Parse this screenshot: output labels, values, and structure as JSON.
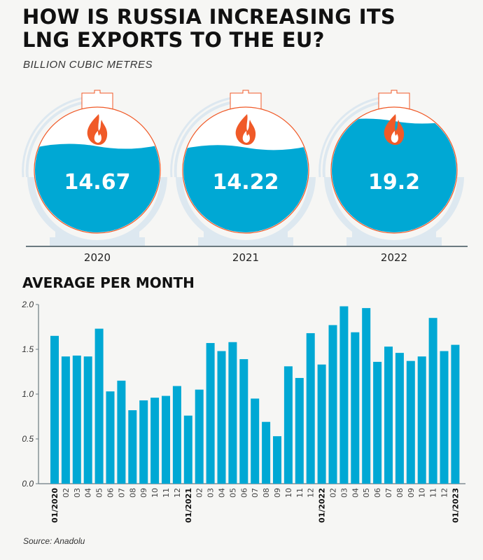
{
  "title_line1": "HOW IS RUSSIA INCREASING ITS",
  "title_line2": "LNG EXPORTS TO THE EU?",
  "subtitle": "BILLION CUBIC METRES",
  "colors": {
    "bar": "#00a8d4",
    "flame": "#f05a28",
    "axis": "#6b7a80",
    "tank_shadow": "#dde8f0"
  },
  "tanks": [
    {
      "year": "2020",
      "value": "14.67",
      "fill_level": 0.7
    },
    {
      "year": "2021",
      "value": "14.22",
      "fill_level": 0.69
    },
    {
      "year": "2022",
      "value": "19.2",
      "fill_level": 0.9
    }
  ],
  "section_title": "AVERAGE PER MONTH",
  "source": "Source: Anadolu",
  "chart_data": {
    "type": "bar",
    "title": "AVERAGE PER MONTH",
    "ylim": [
      0,
      2.0
    ],
    "yticks": [
      "0.0",
      "0.5",
      "1.0",
      "1.5",
      "2.0"
    ],
    "grid": false,
    "categories": [
      "01/2020",
      "02",
      "03",
      "04",
      "05",
      "06",
      "07",
      "08",
      "09",
      "10",
      "11",
      "12",
      "01/2021",
      "02",
      "03",
      "04",
      "05",
      "06",
      "07",
      "08",
      "09",
      "10",
      "11",
      "12",
      "01/2022",
      "02",
      "03",
      "04",
      "05",
      "06",
      "07",
      "08",
      "09",
      "10",
      "11",
      "12",
      "01/2023"
    ],
    "values": [
      1.65,
      1.42,
      1.43,
      1.42,
      1.73,
      1.03,
      1.15,
      0.82,
      0.93,
      0.96,
      0.98,
      1.09,
      0.76,
      1.05,
      1.57,
      1.48,
      1.58,
      1.39,
      0.95,
      0.69,
      0.53,
      1.31,
      1.18,
      1.68,
      1.33,
      1.77,
      1.98,
      1.69,
      1.96,
      1.36,
      1.53,
      1.46,
      1.37,
      1.42,
      1.85,
      1.48,
      1.55
    ]
  }
}
